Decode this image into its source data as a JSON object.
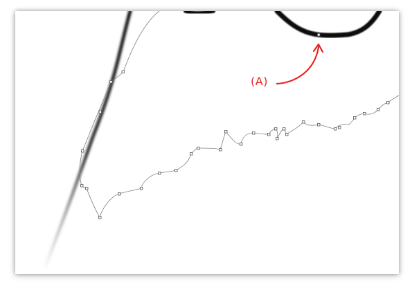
{
  "annotation": {
    "label": "(A)",
    "color": "#e8231f"
  },
  "colors": {
    "background": "#ffffff",
    "stroke": "#111111",
    "path": "#777777",
    "anchor_fill": "#ffffff",
    "anchor_stroke": "#555555"
  },
  "icons": [
    "curved-arrow-icon"
  ]
}
